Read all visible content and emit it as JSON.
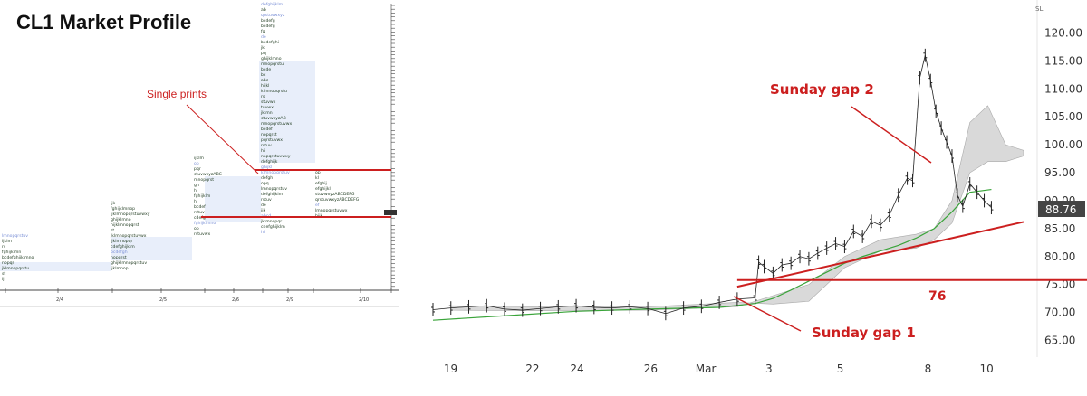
{
  "market_profile": {
    "title": "CL1 Market Profile",
    "annotation": "Single prints",
    "x_ticks": [
      "2/4",
      "2/5",
      "2/6",
      "2/9",
      "2/10"
    ],
    "colors": {
      "text": "#1f3a1f",
      "highlight_bg": "#e8eefa",
      "blue_text": "#7a8fd6",
      "line": "#cc1f1f"
    }
  },
  "chart_data": {
    "type": "line",
    "title": "",
    "x_ticks": [
      "19",
      "22",
      "24",
      "26",
      "Mar",
      "3",
      "5",
      "8",
      "10"
    ],
    "y_ticks": [
      65,
      70,
      75,
      80,
      85,
      90,
      95,
      100,
      105,
      110,
      115,
      120
    ],
    "ylim": [
      62,
      123
    ],
    "current_price": "88.76",
    "corner_label": "SL",
    "price_series": [
      {
        "x": 0,
        "y": 70.5
      },
      {
        "x": 1,
        "y": 70.8
      },
      {
        "x": 2,
        "y": 71.0
      },
      {
        "x": 3,
        "y": 71.2
      },
      {
        "x": 4,
        "y": 70.6
      },
      {
        "x": 5,
        "y": 70.4
      },
      {
        "x": 6,
        "y": 70.7
      },
      {
        "x": 7,
        "y": 71.0
      },
      {
        "x": 8,
        "y": 71.2
      },
      {
        "x": 9,
        "y": 70.9
      },
      {
        "x": 10,
        "y": 70.8
      },
      {
        "x": 11,
        "y": 71.0
      },
      {
        "x": 12,
        "y": 70.7
      },
      {
        "x": 13,
        "y": 69.8
      },
      {
        "x": 14,
        "y": 70.8
      },
      {
        "x": 15,
        "y": 71.1
      },
      {
        "x": 16,
        "y": 71.8
      },
      {
        "x": 17,
        "y": 72.4
      },
      {
        "x": 18,
        "y": 72.6
      },
      {
        "x": 18.2,
        "y": 79.0
      },
      {
        "x": 18.5,
        "y": 78.2
      },
      {
        "x": 19,
        "y": 77.0
      },
      {
        "x": 19.5,
        "y": 78.5
      },
      {
        "x": 20,
        "y": 78.8
      },
      {
        "x": 20.5,
        "y": 80.0
      },
      {
        "x": 21,
        "y": 79.6
      },
      {
        "x": 21.5,
        "y": 80.6
      },
      {
        "x": 22,
        "y": 81.5
      },
      {
        "x": 22.5,
        "y": 82.3
      },
      {
        "x": 23,
        "y": 81.8
      },
      {
        "x": 23.5,
        "y": 84.5
      },
      {
        "x": 24,
        "y": 83.6
      },
      {
        "x": 24.5,
        "y": 86.3
      },
      {
        "x": 25,
        "y": 85.6
      },
      {
        "x": 25.5,
        "y": 87.4
      },
      {
        "x": 26,
        "y": 91.0
      },
      {
        "x": 26.5,
        "y": 94.0
      },
      {
        "x": 26.8,
        "y": 93.6
      },
      {
        "x": 27.2,
        "y": 112.0
      },
      {
        "x": 27.5,
        "y": 116.0
      },
      {
        "x": 27.8,
        "y": 111.5
      },
      {
        "x": 28.1,
        "y": 106.0
      },
      {
        "x": 28.4,
        "y": 103.0
      },
      {
        "x": 28.7,
        "y": 100.5
      },
      {
        "x": 29.0,
        "y": 98.0
      },
      {
        "x": 29.3,
        "y": 91.0
      },
      {
        "x": 29.6,
        "y": 89.0
      },
      {
        "x": 30.0,
        "y": 93.0
      },
      {
        "x": 30.4,
        "y": 91.5
      },
      {
        "x": 30.8,
        "y": 90.0
      },
      {
        "x": 31.2,
        "y": 88.76
      }
    ],
    "ma_series": [
      {
        "x": 0,
        "y": 68.6
      },
      {
        "x": 4,
        "y": 69.4
      },
      {
        "x": 8,
        "y": 70.2
      },
      {
        "x": 12,
        "y": 70.6
      },
      {
        "x": 16,
        "y": 70.9
      },
      {
        "x": 18,
        "y": 71.6
      },
      {
        "x": 19,
        "y": 72.5
      },
      {
        "x": 20,
        "y": 74.0
      },
      {
        "x": 21,
        "y": 75.6
      },
      {
        "x": 22,
        "y": 77.2
      },
      {
        "x": 23,
        "y": 78.8
      },
      {
        "x": 24,
        "y": 80.0
      },
      {
        "x": 25,
        "y": 81.0
      },
      {
        "x": 26,
        "y": 82.0
      },
      {
        "x": 27,
        "y": 83.3
      },
      {
        "x": 28,
        "y": 85.0
      },
      {
        "x": 29,
        "y": 88.0
      },
      {
        "x": 30,
        "y": 91.5
      },
      {
        "x": 31.2,
        "y": 92.0
      }
    ],
    "annotations": [
      {
        "label": "Sunday gap 2"
      },
      {
        "label": "Sunday gap 1"
      },
      {
        "label": "76"
      }
    ],
    "horizontal_line": 75.8,
    "trendline": [
      {
        "x": 17,
        "y": 74.6
      },
      {
        "x": 33,
        "y": 86.2
      }
    ]
  }
}
